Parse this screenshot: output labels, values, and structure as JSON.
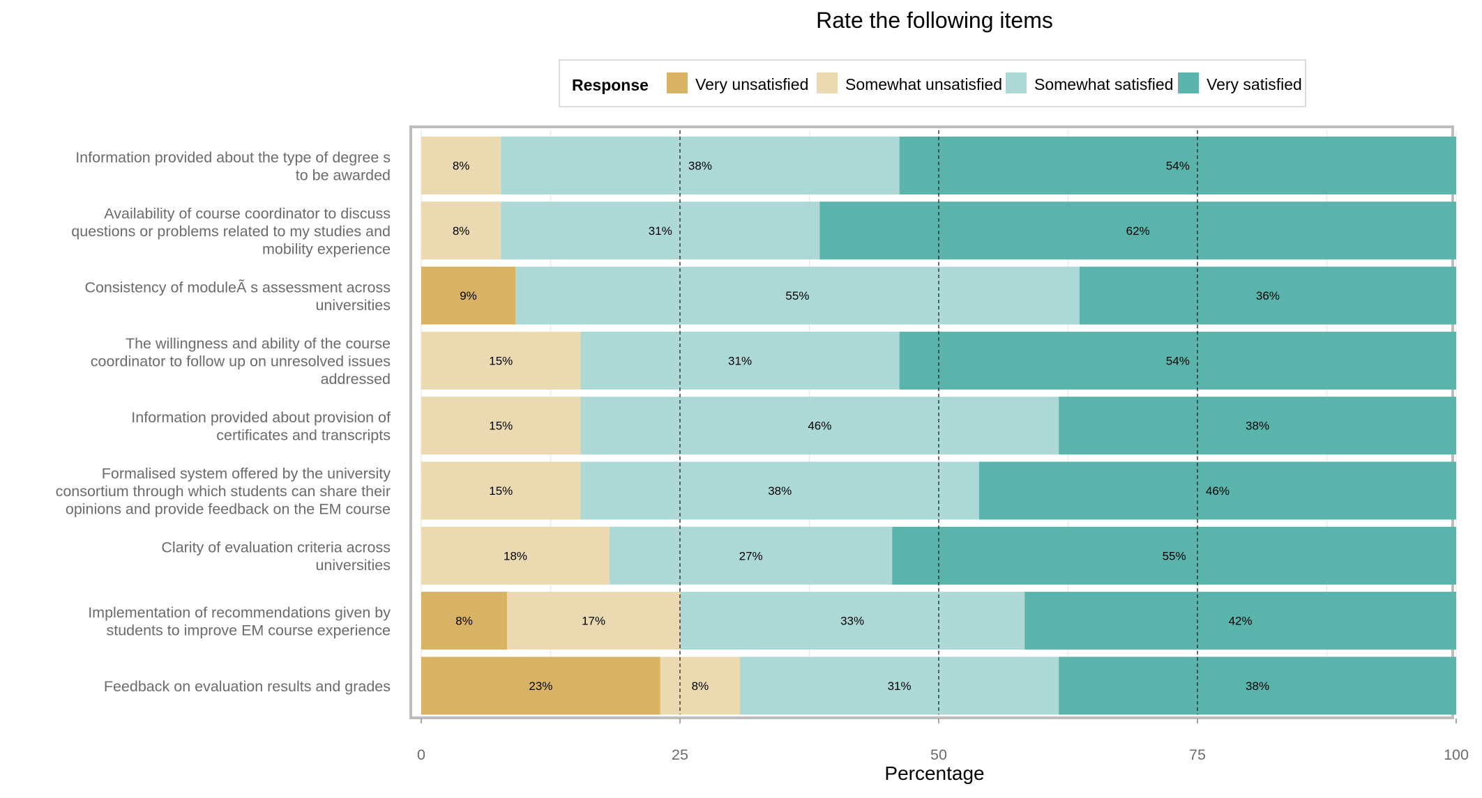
{
  "chart_data": {
    "type": "bar",
    "orientation": "horizontal",
    "stacked": true,
    "title": "Rate the following items",
    "xlabel": "Percentage",
    "ylabel": "",
    "xlim": [
      0,
      100
    ],
    "x_ticks": [
      0,
      25,
      50,
      75,
      100
    ],
    "x_tick_labels": [
      "0",
      "25",
      "50",
      "75",
      "100"
    ],
    "reference_lines": [
      25,
      50,
      75
    ],
    "grid": true,
    "legend": {
      "title": "Response",
      "position": "top"
    },
    "categories": [
      [
        "Information provided about the type of degree s",
        "to be awarded"
      ],
      [
        "Availability of course coordinator to discuss",
        "questions or problems related to my studies and",
        "mobility experience"
      ],
      [
        "Consistency of moduleÃ s assessment across",
        "universities"
      ],
      [
        "The willingness and ability of the course",
        "coordinator to follow up on unresolved issues",
        "addressed"
      ],
      [
        "Information provided about provision of",
        "certificates and transcripts"
      ],
      [
        "Formalised system offered by the university",
        "consortium through which students can share their",
        "opinions and provide feedback on the EM course"
      ],
      [
        "Clarity of evaluation criteria across",
        "universities"
      ],
      [
        "Implementation of recommendations given by",
        "students to improve EM course experience"
      ],
      [
        "Feedback on evaluation results and grades"
      ]
    ],
    "series": [
      {
        "name": "Very unsatisfied",
        "color": "#D8B365",
        "values": [
          0,
          0,
          9.1,
          0,
          0,
          0,
          0,
          8.3,
          23.1
        ],
        "labels": [
          "",
          "",
          "9%",
          "",
          "",
          "",
          "",
          "8%",
          "23%"
        ]
      },
      {
        "name": "Somewhat unsatisfied",
        "color": "#EBD9B2",
        "values": [
          7.7,
          7.7,
          0,
          15.4,
          15.4,
          15.4,
          18.2,
          16.7,
          7.7
        ],
        "labels": [
          "8%",
          "8%",
          "",
          "15%",
          "15%",
          "15%",
          "18%",
          "17%",
          "8%"
        ]
      },
      {
        "name": "Somewhat satisfied",
        "color": "#ACD9D6",
        "values": [
          38.5,
          30.8,
          54.5,
          30.8,
          46.2,
          38.5,
          27.3,
          33.3,
          30.8
        ],
        "labels": [
          "38%",
          "31%",
          "55%",
          "31%",
          "46%",
          "38%",
          "27%",
          "33%",
          "31%"
        ]
      },
      {
        "name": "Very satisfied",
        "color": "#5AB4AC",
        "values": [
          53.8,
          61.5,
          36.4,
          53.8,
          38.4,
          46.1,
          54.5,
          41.7,
          38.4
        ],
        "labels": [
          "54%",
          "62%",
          "36%",
          "54%",
          "38%",
          "46%",
          "55%",
          "42%",
          "38%"
        ]
      }
    ]
  }
}
